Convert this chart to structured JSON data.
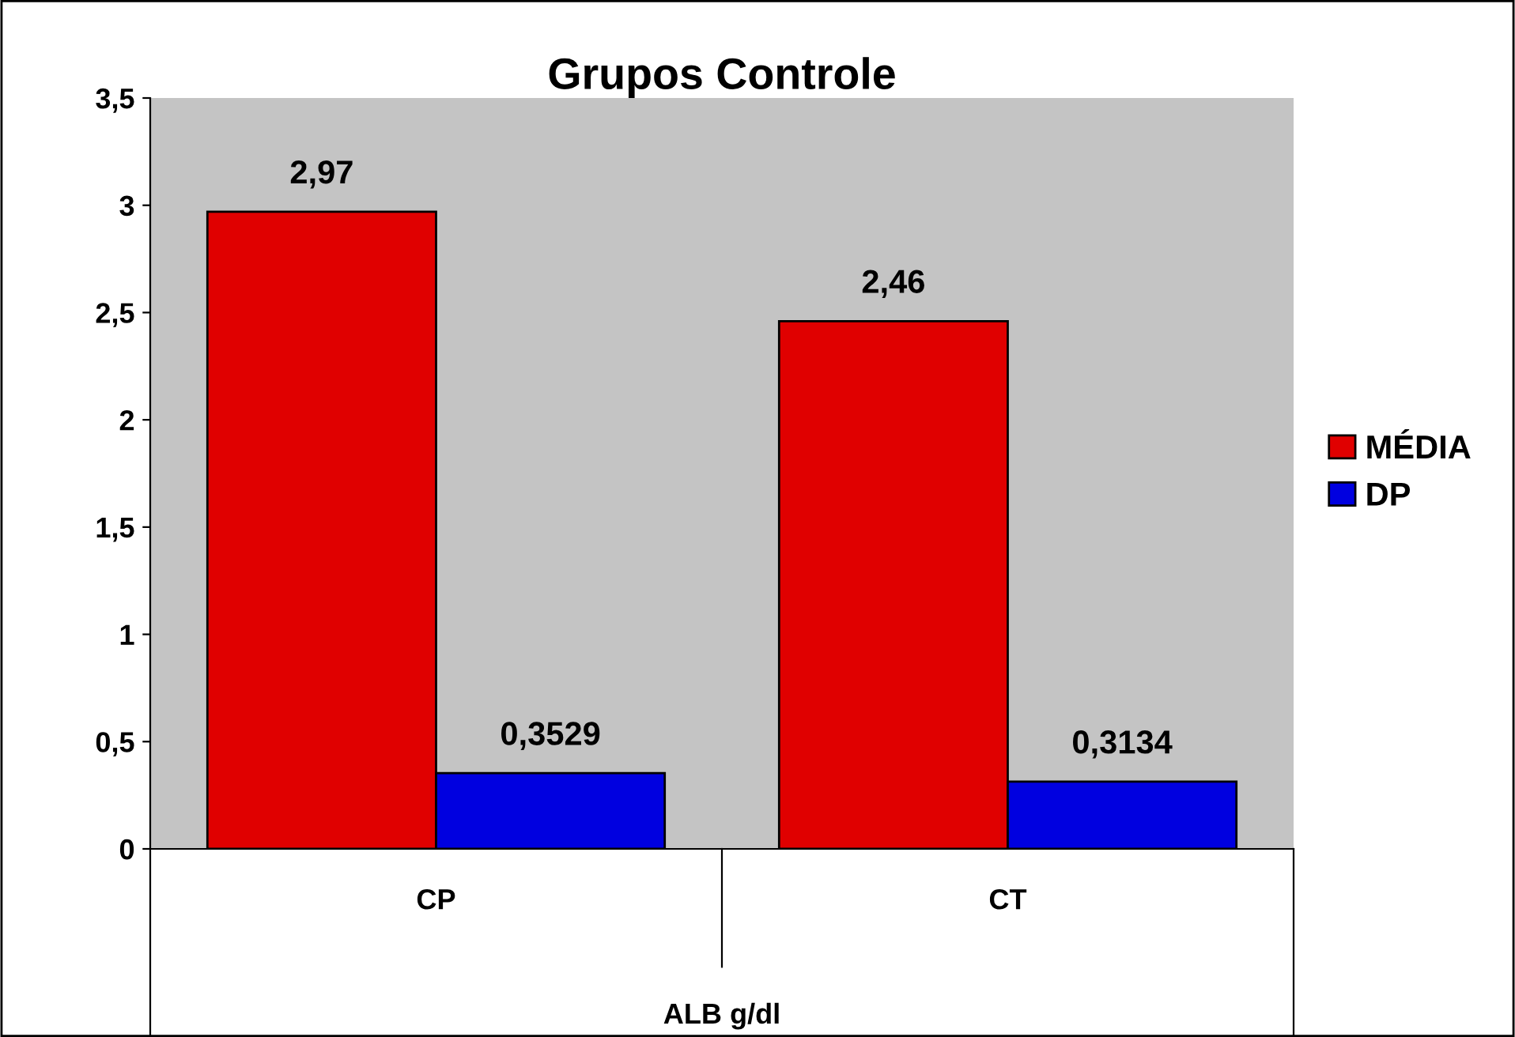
{
  "chart_data": {
    "type": "bar",
    "title": "Grupos Controle",
    "xlabel": "ALB g/dl",
    "categories": [
      "CP",
      "CT"
    ],
    "series": [
      {
        "name": "MÉDIA",
        "color": "#e00000",
        "values": [
          2.97,
          2.46
        ],
        "value_labels": [
          "2,97",
          "2,46"
        ]
      },
      {
        "name": "DP",
        "color": "#0000e0",
        "values": [
          0.3529,
          0.3134
        ],
        "value_labels": [
          "0,3529",
          "0,3134"
        ]
      }
    ],
    "ylim": [
      0,
      3.5
    ],
    "yticks": [
      0,
      {
        "value": 0.5,
        "label": "0,5"
      },
      1,
      {
        "value": 1.5,
        "label": "1,5"
      },
      2,
      {
        "value": 2.5,
        "label": "2,5"
      },
      3,
      {
        "value": 3.5,
        "label": "3,5"
      }
    ],
    "grid": false,
    "legend": "right"
  }
}
